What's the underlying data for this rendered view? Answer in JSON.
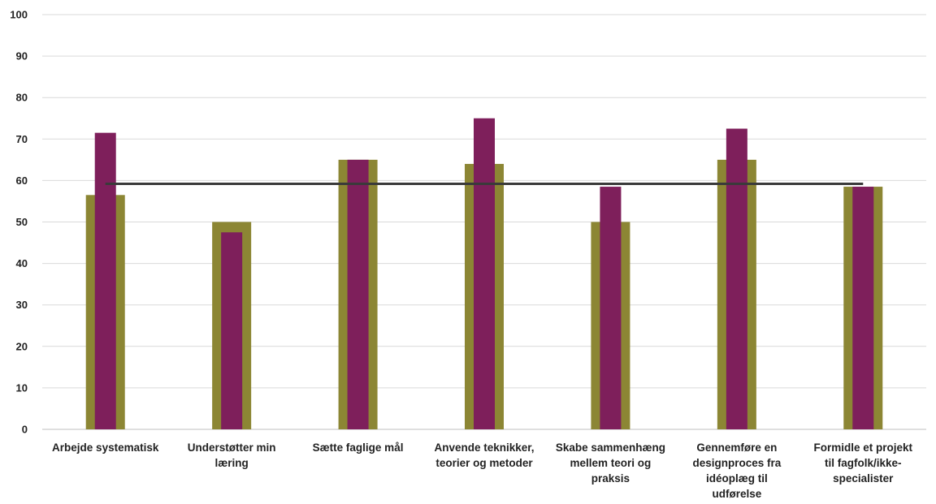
{
  "chart_data": {
    "type": "bar",
    "title": "",
    "xlabel": "",
    "ylabel": "",
    "ylim": [
      0,
      100
    ],
    "yticks": [
      0,
      10,
      20,
      30,
      40,
      50,
      60,
      70,
      80,
      90,
      100
    ],
    "grid": true,
    "legend": "none",
    "categories": [
      [
        "Arbejde systematisk"
      ],
      [
        "Understøtter min",
        "læring"
      ],
      [
        "Sætte faglige mål"
      ],
      [
        "Anvende teknikker,",
        "teorier og metoder"
      ],
      [
        "Skabe sammenhæng",
        "mellem teori og",
        "praksis"
      ],
      [
        "Gennemføre en",
        "designproces fra",
        "idéoplæg til",
        "udførelse"
      ],
      [
        "Formidle et projekt",
        "til fagfolk/ikke-",
        "specialister"
      ]
    ],
    "series": [
      {
        "type": "bar",
        "style": "wide",
        "color": "#8C8634",
        "values": [
          56.5,
          50,
          65,
          64,
          50,
          65,
          58.5
        ]
      },
      {
        "type": "bar",
        "style": "narrow",
        "color": "#7E1F5B",
        "values": [
          71.5,
          47.5,
          65,
          75,
          58.5,
          72.5,
          58.5
        ]
      },
      {
        "type": "line",
        "color": "#3a3a3a",
        "values": [
          59.2,
          59.2,
          59.2,
          59.2,
          59.2,
          59.2,
          59.2
        ]
      }
    ]
  }
}
